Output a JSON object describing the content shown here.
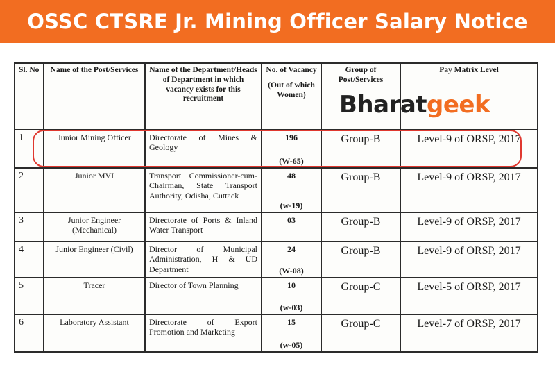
{
  "banner": {
    "title": "OSSC CTSRE Jr. Mining Officer Salary Notice"
  },
  "watermark": {
    "part1": "Bharat",
    "part2": "geek"
  },
  "table": {
    "headers": {
      "sl": "Sl. No",
      "post": "Name of the Post/Services",
      "dept": "Name of the Department/Heads of Department in which vacancy exists for this recruitment",
      "vacancy": "No. of Vacancy",
      "vacancy_sub": "(Out of which Women)",
      "group": "Group of Post/Services",
      "pay": "Pay Matrix Level"
    },
    "rows": [
      {
        "sl": "1",
        "post": "Junior Mining Officer",
        "dept": "Directorate of Mines & Geology",
        "vacancy": "196",
        "women": "(W-65)",
        "group": "Group-B",
        "pay": "Level-9 of ORSP, 2017"
      },
      {
        "sl": "2",
        "post": "Junior MVI",
        "dept": "Transport Commissioner-cum-Chairman, State Transport Authority, Odisha, Cuttack",
        "vacancy": "48",
        "women": "(w-19)",
        "group": "Group-B",
        "pay": "Level-9 of ORSP, 2017"
      },
      {
        "sl": "3",
        "post": "Junior Engineer (Mechanical)",
        "dept": "Directorate of Ports & Inland Water Transport",
        "vacancy": "03",
        "women": "",
        "group": "Group-B",
        "pay": "Level-9 of ORSP, 2017"
      },
      {
        "sl": "4",
        "post": "Junior Engineer (Civil)",
        "dept": "Director of Municipal Administration, H & UD Department",
        "vacancy": "24",
        "women": "(W-08)",
        "group": "Group-B",
        "pay": "Level-9 of ORSP, 2017"
      },
      {
        "sl": "5",
        "post": "Tracer",
        "dept": "Director of Town Planning",
        "vacancy": "10",
        "women": "(w-03)",
        "group": "Group-C",
        "pay": "Level-5 of ORSP, 2017"
      },
      {
        "sl": "6",
        "post": "Laboratory Assistant",
        "dept": "Directorate of Export Promotion and Marketing",
        "vacancy": "15",
        "women": "(w-05)",
        "group": "Group-C",
        "pay": "Level-7 of ORSP, 2017"
      }
    ]
  },
  "colors": {
    "accent": "#f26d21",
    "highlight": "#e0382f"
  }
}
